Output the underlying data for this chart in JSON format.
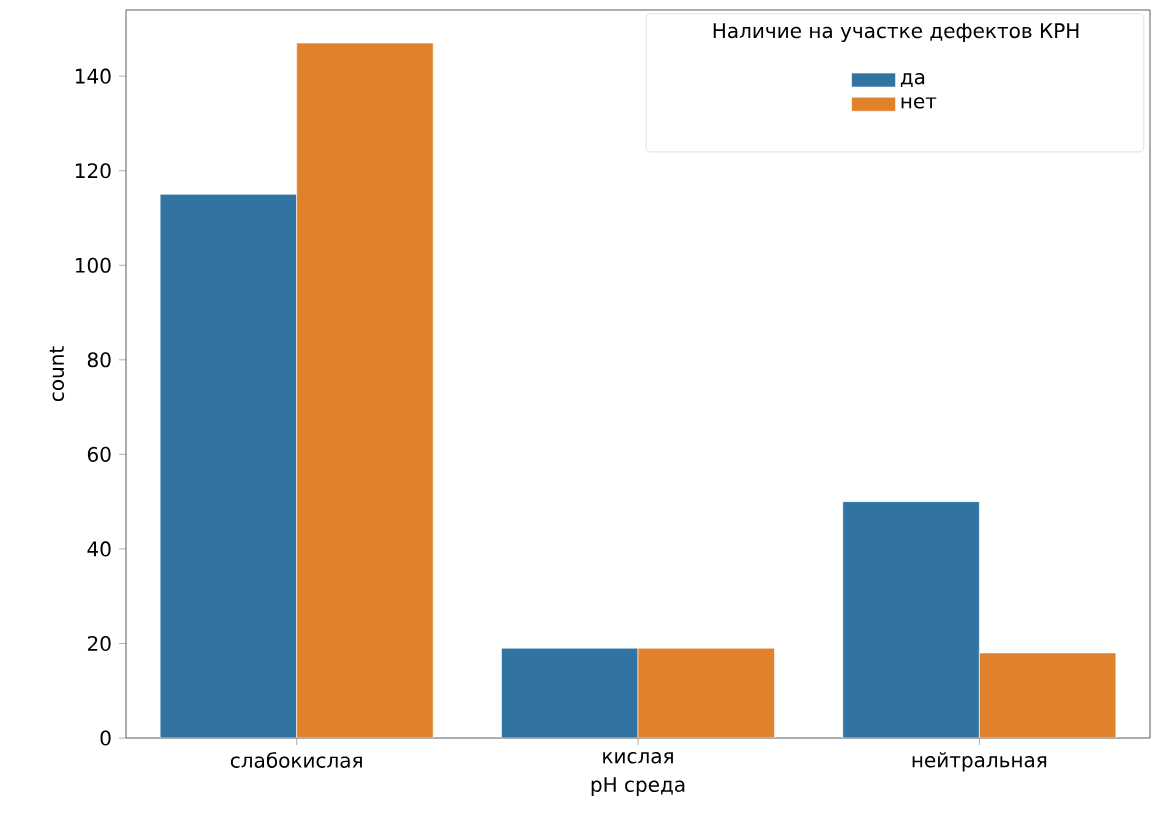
{
  "chart_data": {
    "type": "bar",
    "xlabel": "pH среда",
    "ylabel": "count",
    "legend_title": "Наличие на участке дефектов КРН",
    "categories": [
      "слабокислая",
      "кислая",
      "нейтральная"
    ],
    "series": [
      {
        "name": "да",
        "color": "#3274a1",
        "values": [
          115,
          19,
          50
        ]
      },
      {
        "name": "нет",
        "color": "#e1812c",
        "values": [
          147,
          19,
          18
        ]
      }
    ],
    "ylim": [
      0,
      154
    ],
    "yticks": [
      0,
      20,
      40,
      60,
      80,
      100,
      120,
      140
    ],
    "legend": "top right"
  }
}
